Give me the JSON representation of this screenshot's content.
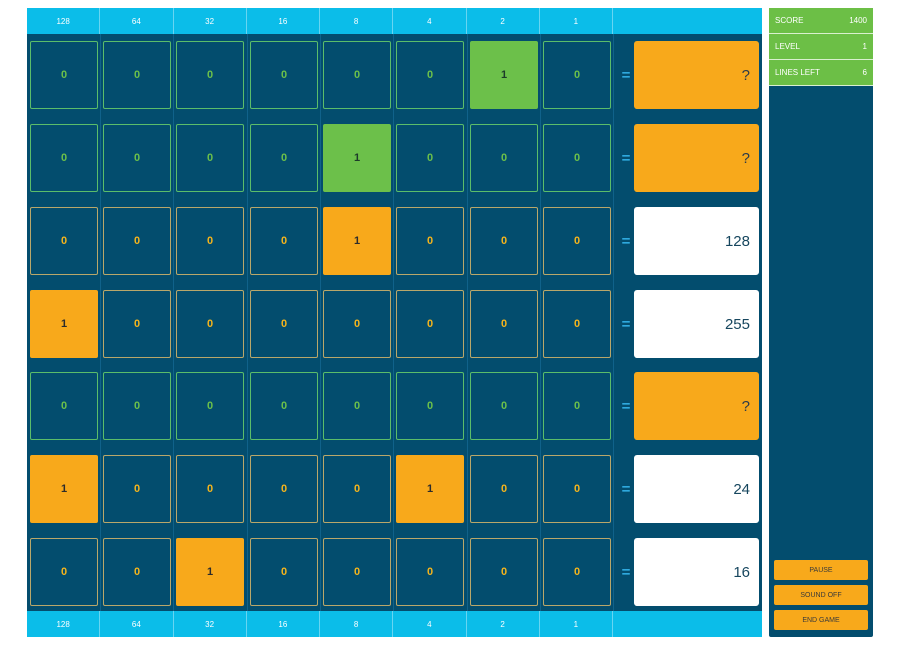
{
  "board": {
    "bit_values": [
      "128",
      "64",
      "32",
      "16",
      "8",
      "4",
      "2",
      "1"
    ],
    "equals_symbol": "=",
    "rows": [
      {
        "color": "green",
        "bits": [
          "0",
          "0",
          "0",
          "0",
          "0",
          "0",
          "1",
          "0"
        ],
        "answer": "?",
        "answer_state": "unknown"
      },
      {
        "color": "green",
        "bits": [
          "0",
          "0",
          "0",
          "0",
          "1",
          "0",
          "0",
          "0"
        ],
        "answer": "?",
        "answer_state": "unknown"
      },
      {
        "color": "orange",
        "bits": [
          "0",
          "0",
          "0",
          "0",
          "1",
          "0",
          "0",
          "0"
        ],
        "answer": "128",
        "answer_state": "known"
      },
      {
        "color": "orange",
        "bits": [
          "1",
          "0",
          "0",
          "0",
          "0",
          "0",
          "0",
          "0"
        ],
        "answer": "255",
        "answer_state": "known"
      },
      {
        "color": "green",
        "bits": [
          "0",
          "0",
          "0",
          "0",
          "0",
          "0",
          "0",
          "0"
        ],
        "answer": "?",
        "answer_state": "unknown"
      },
      {
        "color": "orange",
        "bits": [
          "1",
          "0",
          "0",
          "0",
          "0",
          "1",
          "0",
          "0"
        ],
        "answer": "24",
        "answer_state": "known"
      },
      {
        "color": "orange",
        "bits": [
          "0",
          "0",
          "1",
          "0",
          "0",
          "0",
          "0",
          "0"
        ],
        "answer": "16",
        "answer_state": "known"
      }
    ]
  },
  "sidebar": {
    "stats": [
      {
        "label": "SCORE",
        "value": "1400"
      },
      {
        "label": "LEVEL",
        "value": "1"
      },
      {
        "label": "LINES LEFT",
        "value": "6"
      }
    ],
    "buttons": {
      "pause": "PAUSE",
      "sound": "SOUND OFF",
      "end": "END GAME"
    }
  },
  "colors": {
    "board_bg": "#034d6e",
    "bitbar_bg": "#0bbde9",
    "green": "#6cc04a",
    "orange": "#f8a91b",
    "white": "#ffffff"
  }
}
